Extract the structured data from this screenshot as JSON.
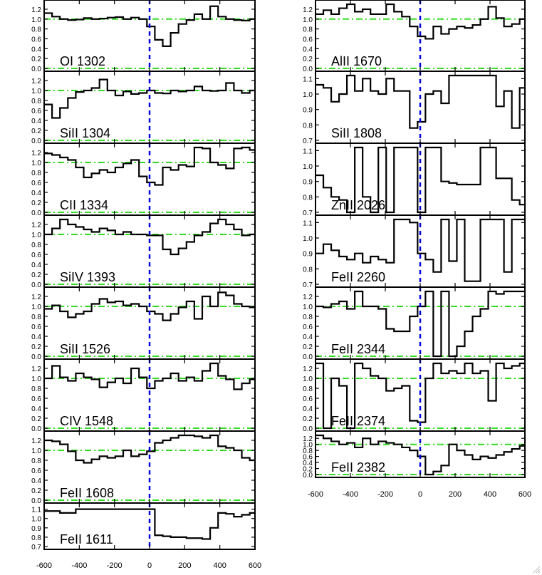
{
  "colors": {
    "data": "#000000",
    "reference": "#33dd22",
    "zero": "#0000dd"
  },
  "resize_icon": "resize-grip-icon",
  "chart_data": [
    {
      "type": "line",
      "column": "left",
      "label": "OI 1302",
      "ylim": [
        0,
        1.3
      ],
      "yticks": [
        "0.0",
        "0.2",
        "0.4",
        "0.6",
        "0.8",
        "1.0",
        "1.2"
      ],
      "ref_lines": [
        0,
        1.0
      ],
      "x": [
        -600,
        -555,
        -510,
        -465,
        -420,
        -375,
        -330,
        -285,
        -240,
        -195,
        -150,
        -105,
        -60,
        -15,
        30,
        75,
        120,
        165,
        210,
        255,
        300,
        345,
        390,
        435,
        480,
        525,
        570
      ],
      "y": [
        1.12,
        1.05,
        1.0,
        0.98,
        0.99,
        1.02,
        1.0,
        1.01,
        1.03,
        1.04,
        1.0,
        1.03,
        1.0,
        0.85,
        0.58,
        0.45,
        0.72,
        0.9,
        0.98,
        1.1,
        1.0,
        1.26,
        1.05,
        1.0,
        0.98,
        0.97,
        1.0
      ]
    },
    {
      "type": "line",
      "column": "left",
      "label": "SiII 1304",
      "ylim": [
        0,
        1.3
      ],
      "yticks": [
        "0.0",
        "0.2",
        "0.4",
        "0.6",
        "0.8",
        "1.0",
        "1.2"
      ],
      "ref_lines": [
        0,
        1.0
      ],
      "x": [
        -600,
        -555,
        -510,
        -465,
        -420,
        -375,
        -330,
        -285,
        -240,
        -195,
        -150,
        -105,
        -60,
        -15,
        30,
        75,
        120,
        165,
        210,
        255,
        300,
        345,
        390,
        435,
        480,
        525,
        570
      ],
      "y": [
        0.72,
        0.45,
        0.65,
        0.85,
        0.97,
        1.0,
        1.05,
        1.22,
        1.0,
        0.9,
        0.98,
        0.93,
        0.95,
        1.0,
        0.95,
        0.94,
        1.0,
        0.98,
        1.0,
        1.08,
        1.0,
        0.99,
        1.0,
        1.15,
        1.0,
        0.95,
        1.0
      ]
    },
    {
      "type": "line",
      "column": "left",
      "label": "CII 1334",
      "ylim": [
        0,
        1.3
      ],
      "yticks": [
        "0.0",
        "0.2",
        "0.4",
        "0.6",
        "0.8",
        "1.0",
        "1.2"
      ],
      "ref_lines": [
        0,
        1.0
      ],
      "x": [
        -600,
        -555,
        -510,
        -465,
        -420,
        -375,
        -330,
        -285,
        -240,
        -195,
        -150,
        -105,
        -60,
        -15,
        30,
        75,
        120,
        165,
        210,
        255,
        300,
        345,
        390,
        435,
        480,
        525,
        570
      ],
      "y": [
        1.18,
        1.15,
        1.1,
        1.05,
        0.9,
        0.7,
        0.78,
        0.85,
        0.8,
        0.9,
        0.98,
        1.05,
        0.72,
        0.6,
        0.55,
        0.9,
        0.85,
        0.95,
        0.92,
        1.3,
        1.28,
        1.0,
        0.95,
        0.88,
        1.28,
        1.32,
        1.25
      ]
    },
    {
      "type": "line",
      "column": "left",
      "label": "SiIV 1393",
      "ylim": [
        0,
        1.3
      ],
      "yticks": [
        "0.0",
        "0.2",
        "0.4",
        "0.6",
        "0.8",
        "1.0",
        "1.2"
      ],
      "ref_lines": [
        0,
        1.0
      ],
      "x": [
        -600,
        -555,
        -510,
        -465,
        -420,
        -375,
        -330,
        -285,
        -240,
        -195,
        -150,
        -105,
        -60,
        -15,
        30,
        75,
        120,
        165,
        210,
        255,
        300,
        345,
        390,
        435,
        480,
        525,
        570
      ],
      "y": [
        1.0,
        1.12,
        1.3,
        1.2,
        1.15,
        1.1,
        1.05,
        1.12,
        1.08,
        1.0,
        1.05,
        1.0,
        1.0,
        0.98,
        0.98,
        0.7,
        0.6,
        0.72,
        0.85,
        0.98,
        1.05,
        1.22,
        1.35,
        1.2,
        1.1,
        0.98,
        1.0
      ]
    },
    {
      "type": "line",
      "column": "left",
      "label": "SiII 1526",
      "ylim": [
        0,
        1.3
      ],
      "yticks": [
        "0.0",
        "0.2",
        "0.4",
        "0.6",
        "0.8",
        "1.0",
        "1.2"
      ],
      "ref_lines": [
        0,
        1.0
      ],
      "x": [
        -600,
        -555,
        -510,
        -465,
        -420,
        -375,
        -330,
        -285,
        -240,
        -195,
        -150,
        -105,
        -60,
        -15,
        30,
        75,
        120,
        165,
        210,
        255,
        300,
        345,
        390,
        435,
        480,
        525,
        570
      ],
      "y": [
        0.95,
        1.02,
        0.9,
        0.78,
        0.85,
        0.9,
        1.05,
        1.15,
        1.08,
        1.1,
        1.02,
        1.05,
        1.0,
        0.9,
        0.85,
        0.72,
        0.85,
        0.98,
        1.1,
        0.75,
        1.2,
        1.0,
        1.28,
        1.22,
        1.05,
        1.0,
        0.98
      ]
    },
    {
      "type": "line",
      "column": "left",
      "label": "CIV 1548",
      "ylim": [
        0,
        1.3
      ],
      "yticks": [
        "0.0",
        "0.2",
        "0.4",
        "0.6",
        "0.8",
        "1.0",
        "1.2"
      ],
      "ref_lines": [
        0,
        1.0
      ],
      "x": [
        -600,
        -555,
        -510,
        -465,
        -420,
        -375,
        -330,
        -285,
        -240,
        -195,
        -150,
        -105,
        -60,
        -15,
        30,
        75,
        120,
        165,
        210,
        255,
        300,
        345,
        390,
        435,
        480,
        525,
        570
      ],
      "y": [
        1.0,
        1.25,
        1.02,
        0.95,
        1.1,
        1.02,
        0.98,
        0.82,
        0.92,
        1.0,
        0.9,
        1.2,
        1.02,
        0.8,
        0.95,
        1.0,
        1.1,
        0.95,
        1.02,
        0.95,
        1.15,
        1.3,
        1.05,
        0.98,
        0.78,
        0.9,
        0.98
      ]
    },
    {
      "type": "line",
      "column": "left",
      "label": "FeII 1608",
      "ylim": [
        0,
        1.3
      ],
      "yticks": [
        "0.0",
        "0.2",
        "0.4",
        "0.6",
        "0.8",
        "1.0",
        "1.2"
      ],
      "ref_lines": [
        0,
        1.0
      ],
      "x": [
        -600,
        -555,
        -510,
        -465,
        -420,
        -375,
        -330,
        -285,
        -240,
        -195,
        -150,
        -105,
        -60,
        -15,
        30,
        75,
        120,
        165,
        210,
        255,
        300,
        345,
        390,
        435,
        480,
        525,
        570
      ],
      "y": [
        1.2,
        1.18,
        1.12,
        0.98,
        0.8,
        0.75,
        0.82,
        0.88,
        0.85,
        0.88,
        1.0,
        0.88,
        0.92,
        0.98,
        1.15,
        1.2,
        1.25,
        1.32,
        1.3,
        1.28,
        1.25,
        1.3,
        1.08,
        1.05,
        1.0,
        0.85,
        0.8
      ]
    },
    {
      "type": "line",
      "column": "left",
      "label": "FeII 1611",
      "ylim": [
        0.7,
        1.12
      ],
      "yticks": [
        "0.7",
        "0.8",
        "0.9",
        "1.0",
        "1.1"
      ],
      "ref_lines": [],
      "x": [
        -600,
        -555,
        -510,
        -465,
        -420,
        -375,
        -330,
        -285,
        -240,
        -195,
        -150,
        -105,
        -60,
        -15,
        30,
        75,
        120,
        165,
        210,
        255,
        300,
        345,
        390,
        435,
        480,
        525,
        570
      ],
      "y": [
        1.08,
        1.08,
        1.06,
        1.06,
        1.1,
        1.1,
        1.1,
        1.1,
        1.1,
        1.1,
        1.1,
        1.1,
        1.1,
        1.1,
        0.82,
        0.81,
        0.8,
        0.8,
        0.79,
        0.79,
        0.78,
        0.9,
        1.06,
        1.05,
        1.02,
        1.04,
        1.06
      ]
    },
    {
      "type": "line",
      "column": "right",
      "label": "AlII 1670",
      "ylim": [
        0,
        1.3
      ],
      "yticks": [
        "0.0",
        "0.2",
        "0.4",
        "0.6",
        "0.8",
        "1.0",
        "1.2"
      ],
      "ref_lines": [
        0,
        1.0
      ],
      "x": [
        -600,
        -555,
        -510,
        -465,
        -420,
        -375,
        -330,
        -285,
        -240,
        -195,
        -150,
        -105,
        -60,
        -15,
        30,
        75,
        120,
        165,
        210,
        255,
        300,
        345,
        390,
        435,
        480,
        525,
        570
      ],
      "y": [
        1.1,
        1.18,
        1.1,
        1.22,
        1.38,
        1.15,
        1.2,
        1.1,
        1.1,
        1.3,
        1.15,
        1.05,
        0.85,
        0.65,
        0.6,
        0.85,
        0.7,
        0.8,
        0.85,
        0.82,
        0.88,
        1.0,
        1.25,
        1.02,
        0.85,
        0.9,
        1.0
      ]
    },
    {
      "type": "line",
      "column": "right",
      "label": "SiII 1808",
      "ylim": [
        0.7,
        1.12
      ],
      "yticks": [
        "0.7",
        "0.8",
        "0.9",
        "1.0",
        "1.1"
      ],
      "ref_lines": [],
      "x": [
        -600,
        -555,
        -510,
        -465,
        -420,
        -375,
        -330,
        -285,
        -240,
        -195,
        -150,
        -105,
        -60,
        -15,
        30,
        75,
        120,
        165,
        210,
        255,
        300,
        345,
        390,
        435,
        480,
        525,
        570
      ],
      "y": [
        1.06,
        1.04,
        0.95,
        1.0,
        1.12,
        1.02,
        1.1,
        1.02,
        1.0,
        1.1,
        1.02,
        1.02,
        0.78,
        0.82,
        1.0,
        1.02,
        0.94,
        1.12,
        1.12,
        1.12,
        1.12,
        1.12,
        1.12,
        0.92,
        1.02,
        0.78,
        1.04
      ]
    },
    {
      "type": "line",
      "column": "right",
      "label": "ZnII 2026",
      "ylim": [
        0.7,
        1.12
      ],
      "yticks": [
        "0.7",
        "0.8",
        "0.9",
        "1.0",
        "1.1"
      ],
      "ref_lines": [],
      "x": [
        -600,
        -555,
        -510,
        -465,
        -420,
        -375,
        -330,
        -285,
        -240,
        -195,
        -150,
        -105,
        -60,
        -15,
        30,
        75,
        120,
        165,
        210,
        255,
        300,
        345,
        390,
        435,
        480,
        525,
        570
      ],
      "y": [
        0.94,
        0.86,
        0.8,
        0.78,
        0.7,
        1.12,
        0.8,
        0.7,
        1.12,
        0.7,
        1.12,
        1.12,
        1.12,
        0.7,
        1.12,
        1.12,
        0.9,
        0.89,
        0.88,
        0.88,
        0.88,
        1.12,
        1.12,
        0.92,
        0.92,
        0.78,
        0.75
      ]
    },
    {
      "type": "line",
      "column": "right",
      "label": "FeII 2260",
      "ylim": [
        0.7,
        1.12
      ],
      "yticks": [
        "0.7",
        "0.8",
        "0.9",
        "1.0",
        "1.1"
      ],
      "ref_lines": [],
      "x": [
        -600,
        -555,
        -510,
        -465,
        -420,
        -375,
        -330,
        -285,
        -240,
        -195,
        -150,
        -105,
        -60,
        -15,
        30,
        75,
        120,
        165,
        210,
        255,
        300,
        345,
        390,
        435,
        480,
        525,
        570
      ],
      "y": [
        0.9,
        0.96,
        0.92,
        0.88,
        0.86,
        0.9,
        0.84,
        0.88,
        0.86,
        0.84,
        1.12,
        1.12,
        1.1,
        0.9,
        0.86,
        0.78,
        1.12,
        0.85,
        1.12,
        0.72,
        0.72,
        1.12,
        1.12,
        1.12,
        0.78,
        1.12,
        1.12
      ]
    },
    {
      "type": "line",
      "column": "right",
      "label": "FeII 2344",
      "ylim": [
        0,
        1.3
      ],
      "yticks": [
        "0.0",
        "0.2",
        "0.4",
        "0.6",
        "0.8",
        "1.0",
        "1.2"
      ],
      "ref_lines": [
        0,
        1.0
      ],
      "x": [
        -600,
        -555,
        -510,
        -465,
        -420,
        -375,
        -330,
        -285,
        -240,
        -195,
        -150,
        -105,
        -60,
        -15,
        30,
        75,
        120,
        165,
        210,
        255,
        300,
        345,
        390,
        435,
        480,
        525,
        570
      ],
      "y": [
        1.0,
        0.98,
        1.05,
        1.1,
        0.95,
        1.3,
        1.0,
        1.0,
        0.95,
        0.55,
        0.5,
        0.5,
        0.8,
        1.0,
        1.3,
        0.0,
        1.3,
        0.0,
        0.2,
        0.5,
        0.8,
        0.95,
        1.38,
        1.25,
        1.38,
        1.38,
        1.38
      ]
    },
    {
      "type": "line",
      "column": "right",
      "label": "FeII 2374",
      "ylim": [
        0,
        1.3
      ],
      "yticks": [
        "0.0",
        "0.2",
        "0.4",
        "0.6",
        "0.8",
        "1.0",
        "1.2"
      ],
      "ref_lines": [
        0,
        1.0
      ],
      "x": [
        -600,
        -555,
        -510,
        -465,
        -420,
        -375,
        -330,
        -285,
        -240,
        -195,
        -150,
        -105,
        -60,
        -15,
        30,
        75,
        120,
        165,
        210,
        255,
        300,
        345,
        390,
        435,
        480,
        525,
        570
      ],
      "y": [
        1.35,
        0.0,
        1.0,
        0.85,
        0.0,
        1.3,
        1.2,
        1.05,
        1.0,
        0.75,
        0.8,
        0.85,
        0.15,
        0.12,
        1.0,
        1.35,
        1.1,
        1.15,
        1.1,
        1.3,
        1.1,
        1.15,
        0.55,
        1.3,
        1.2,
        1.25,
        1.3
      ]
    },
    {
      "type": "line",
      "column": "right",
      "label": "FeII 2382",
      "ylim": [
        0,
        1.3
      ],
      "yticks": [
        "0.0",
        "0.2",
        "0.4",
        "0.6",
        "0.8",
        "1.0",
        "1.2"
      ],
      "ref_lines": [
        0,
        1.0
      ],
      "x": [
        -600,
        -555,
        -510,
        -465,
        -420,
        -375,
        -330,
        -285,
        -240,
        -195,
        -150,
        -105,
        -60,
        -15,
        30,
        75,
        120,
        165,
        210,
        255,
        300,
        345,
        390,
        435,
        480,
        525,
        570
      ],
      "y": [
        1.3,
        1.2,
        1.1,
        1.0,
        1.05,
        0.9,
        1.2,
        1.0,
        1.1,
        1.05,
        1.0,
        0.9,
        0.8,
        0.6,
        0.0,
        0.1,
        0.3,
        1.0,
        0.8,
        0.65,
        0.5,
        0.6,
        0.55,
        0.65,
        0.75,
        0.85,
        0.95
      ]
    }
  ],
  "axes": {
    "xlim": [
      -600,
      600
    ],
    "xtick_labels": [
      "-600",
      "-400",
      "-200",
      "0",
      "200",
      "400",
      "600"
    ],
    "zero_line_x": 0
  }
}
